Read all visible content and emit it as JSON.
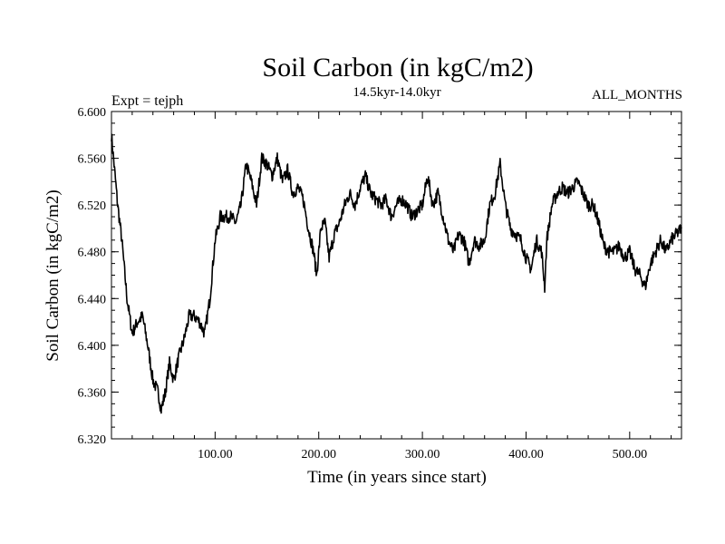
{
  "chart_data": {
    "type": "line",
    "title": "Soil Carbon (in kgC/m2)",
    "subtitle": "14.5kyr-14.0kyr",
    "left_label": "Expt = tejph",
    "right_label": "ALL_MONTHS",
    "xlabel": "Time (in years since start)",
    "ylabel": "Soil Carbon (in kgC/m2)",
    "xlim": [
      0,
      550
    ],
    "ylim": [
      6.32,
      6.6
    ],
    "x_ticks": [
      100,
      200,
      300,
      400,
      500
    ],
    "x_tick_labels": [
      "100.00",
      "200.00",
      "300.00",
      "400.00",
      "500.00"
    ],
    "y_ticks": [
      6.32,
      6.36,
      6.4,
      6.44,
      6.48,
      6.52,
      6.56,
      6.6
    ],
    "y_tick_labels": [
      "6.320",
      "6.360",
      "6.400",
      "6.440",
      "6.480",
      "6.520",
      "6.560",
      "6.600"
    ],
    "grid": false,
    "series": [
      {
        "name": "Soil Carbon",
        "color": "#000000",
        "x": [
          0,
          3,
          6,
          10,
          15,
          20,
          25,
          30,
          35,
          40,
          45,
          48,
          52,
          56,
          60,
          65,
          70,
          75,
          80,
          85,
          90,
          95,
          100,
          105,
          110,
          115,
          120,
          125,
          130,
          135,
          140,
          145,
          150,
          155,
          160,
          165,
          170,
          175,
          180,
          185,
          190,
          195,
          198,
          202,
          206,
          210,
          215,
          220,
          225,
          230,
          235,
          240,
          245,
          250,
          255,
          260,
          265,
          270,
          275,
          280,
          285,
          290,
          295,
          300,
          305,
          310,
          315,
          320,
          325,
          330,
          335,
          340,
          345,
          350,
          355,
          360,
          365,
          370,
          375,
          380,
          385,
          390,
          395,
          400,
          405,
          410,
          415,
          418,
          420,
          425,
          430,
          435,
          440,
          445,
          450,
          455,
          460,
          465,
          470,
          475,
          480,
          485,
          490,
          495,
          500,
          505,
          510,
          515,
          520,
          525,
          530,
          535,
          540,
          545,
          550
        ],
        "y": [
          6.58,
          6.55,
          6.52,
          6.49,
          6.44,
          6.41,
          6.42,
          6.425,
          6.4,
          6.37,
          6.36,
          6.345,
          6.36,
          6.385,
          6.37,
          6.39,
          6.405,
          6.425,
          6.425,
          6.42,
          6.41,
          6.44,
          6.49,
          6.51,
          6.51,
          6.51,
          6.505,
          6.52,
          6.555,
          6.54,
          6.52,
          6.56,
          6.555,
          6.545,
          6.56,
          6.54,
          6.55,
          6.53,
          6.535,
          6.525,
          6.5,
          6.48,
          6.46,
          6.5,
          6.505,
          6.475,
          6.495,
          6.505,
          6.52,
          6.53,
          6.52,
          6.535,
          6.545,
          6.53,
          6.525,
          6.52,
          6.525,
          6.51,
          6.52,
          6.525,
          6.52,
          6.51,
          6.515,
          6.52,
          6.545,
          6.52,
          6.53,
          6.51,
          6.49,
          6.48,
          6.495,
          6.49,
          6.47,
          6.49,
          6.485,
          6.49,
          6.52,
          6.53,
          6.555,
          6.52,
          6.5,
          6.495,
          6.49,
          6.475,
          6.465,
          6.49,
          6.48,
          6.45,
          6.49,
          6.52,
          6.53,
          6.535,
          6.53,
          6.535,
          6.54,
          6.53,
          6.52,
          6.52,
          6.505,
          6.485,
          6.48,
          6.48,
          6.485,
          6.475,
          6.48,
          6.465,
          6.46,
          6.45,
          6.47,
          6.48,
          6.49,
          6.48,
          6.49,
          6.495,
          6.5
        ]
      }
    ]
  }
}
